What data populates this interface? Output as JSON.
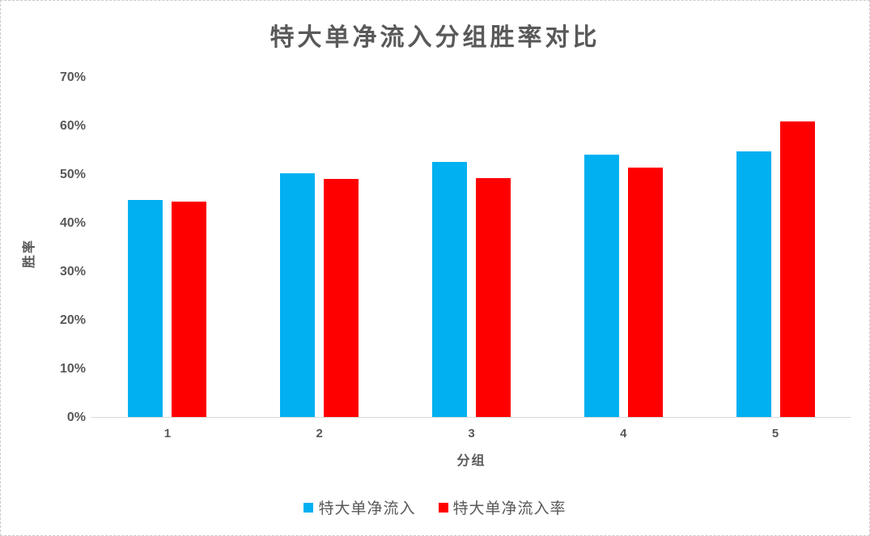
{
  "window": {
    "background": "#ffffff",
    "border_color": "#c9c9c9",
    "text_color": "#595959",
    "axis_line_color": "#d9d9d9"
  },
  "chart_data": {
    "type": "bar",
    "title": "特大单净流入分组胜率对比",
    "xlabel": "分组",
    "ylabel": "胜率",
    "categories": [
      "1",
      "2",
      "3",
      "4",
      "5"
    ],
    "series": [
      {
        "name": "特大单净流入",
        "color": "#00B0F0",
        "values": [
          44.8,
          50.3,
          52.7,
          54.2,
          54.8
        ]
      },
      {
        "name": "特大单净流入率",
        "color": "#FF0000",
        "values": [
          44.4,
          49.2,
          49.3,
          51.5,
          61.0
        ]
      }
    ],
    "y_ticks": [
      "70%",
      "60%",
      "50%",
      "40%",
      "30%",
      "20%",
      "10%",
      "0%"
    ],
    "ylim": [
      0,
      70
    ],
    "grid": false,
    "legend_position": "bottom"
  }
}
